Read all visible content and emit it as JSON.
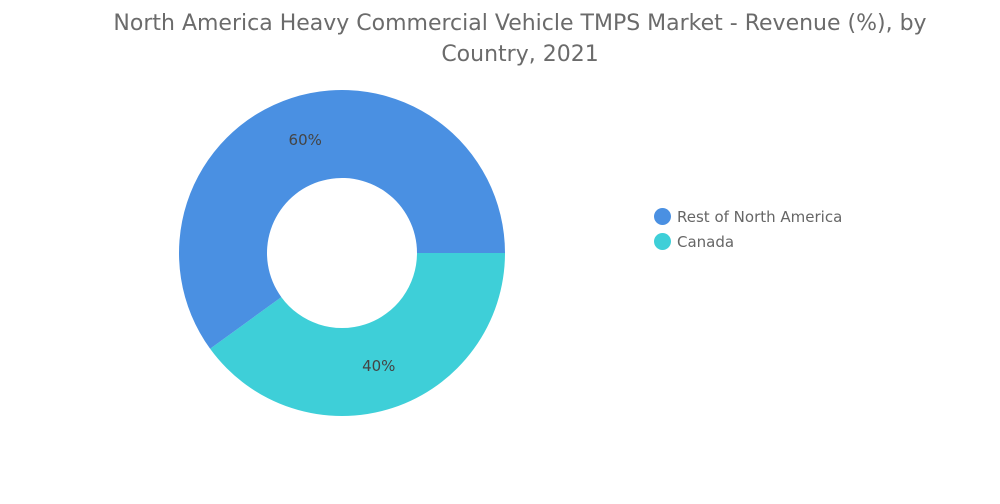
{
  "chart_data": {
    "type": "pie",
    "donut": true,
    "title": "North America Heavy Commercial Vehicle TMPS Market - Revenue (%), by Country, 2021",
    "categories": [
      "Rest of North America",
      "Canada"
    ],
    "values": [
      60,
      40
    ],
    "data_labels": [
      "60%",
      "40%"
    ],
    "colors": [
      "#4a90e2",
      "#3ecfd8"
    ],
    "legend_position": "right"
  }
}
